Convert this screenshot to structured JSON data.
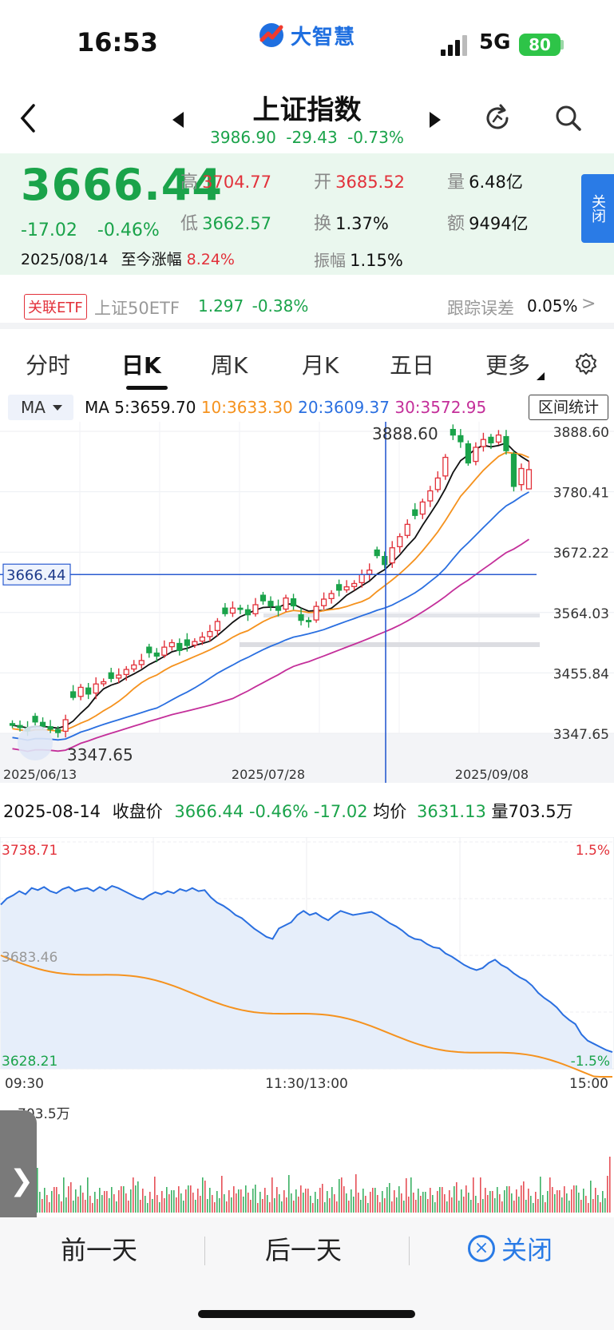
{
  "status": {
    "time": "16:53",
    "logo_text": "大智慧",
    "network": "5G",
    "battery": "80"
  },
  "header": {
    "title": "上证指数",
    "subtitle": "3986.90  -29.43  -0.73%"
  },
  "quote": {
    "price": "3666.44",
    "change": "-17.02",
    "change_pct": "-0.46%",
    "date": "2025/08/14",
    "since_label": "至今涨幅",
    "since_value": "8.24%",
    "high_label": "高",
    "high": "3704.77",
    "low_label": "低",
    "low": "3662.57",
    "open_label": "开",
    "open": "3685.52",
    "turnover_label": "换",
    "turnover": "1.37%",
    "amplitude_label": "振幅",
    "amplitude": "1.15%",
    "volume_label": "量",
    "volume": "6.48亿",
    "amount_label": "额",
    "amount": "9494亿",
    "close_side": "关闭"
  },
  "etf": {
    "badge": "关联ETF",
    "name": "上证50ETF",
    "value": "1.297 -0.38%",
    "tracking_label": "跟踪误差",
    "tracking_value": "0.05%",
    "arrow": ">"
  },
  "tabs": [
    {
      "label": "分时"
    },
    {
      "label": "日K"
    },
    {
      "label": "周K"
    },
    {
      "label": "月K"
    },
    {
      "label": "五日"
    },
    {
      "label": "更多"
    }
  ],
  "ma": {
    "selector": "MA",
    "ma5": "MA 5:3659.70",
    "ma10": "10:3633.30",
    "ma20": "20:3609.37",
    "ma30": "30:3572.95",
    "ma5_color": "#111111",
    "ma10_color": "#f5921e",
    "ma20_color": "#2a6fe0",
    "ma30_color": "#c42f9a",
    "interval_btn": "区间统计"
  },
  "kline": {
    "y_labels": [
      "3888.60",
      "3780.41",
      "3672.22",
      "3564.03",
      "3455.84",
      "3347.65"
    ],
    "max_label": "3888.60",
    "min_label": "3347.65",
    "cursor_label": "3666.44",
    "x_labels": [
      "2025/06/13",
      "2025/07/28",
      "2025/09/08"
    ],
    "up_color": "#e2313a",
    "down_color": "#1aa34a"
  },
  "info_row": {
    "date": "2025-08-14",
    "close_label": "收盘价",
    "close_vals": "3666.44 -0.46% -17.02",
    "avg_label": "均价",
    "avg_val": "3631.13",
    "vol_label": "量703.5万"
  },
  "intraday": {
    "y_top": "3738.71",
    "y_mid": "3683.46",
    "y_bottom": "3628.21",
    "pct_top": "1.5%",
    "pct_bottom": "-1.5%",
    "x_labels": [
      "09:30",
      "11:30/13:00",
      "15:00"
    ],
    "volume_label": "703.5万",
    "price_color": "#2a6fe0",
    "avg_color": "#f5921e"
  },
  "bottom": {
    "prev": "前一天",
    "next": "后一天",
    "close": "关闭",
    "close_icon": "×"
  },
  "side_handle_icon": "❯"
}
